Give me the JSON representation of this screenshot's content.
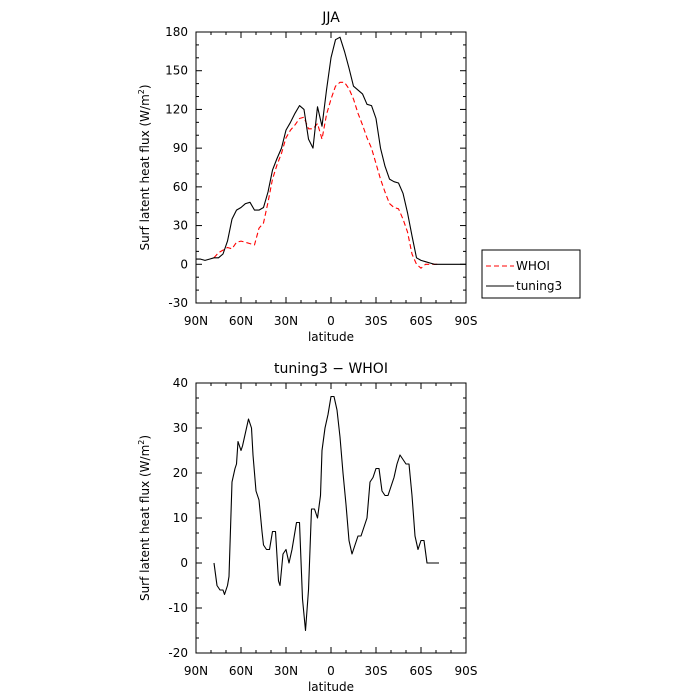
{
  "chart_data": [
    {
      "type": "line",
      "title": "JJA",
      "xlabel": "latitude",
      "ylabel": "Surf latent heat flux (W/m",
      "ylabel_sup": "2",
      "ylabel_end": ")",
      "xlim": [
        90,
        -90
      ],
      "ylim": [
        -30,
        180
      ],
      "x_ticks": [
        90,
        60,
        30,
        0,
        -30,
        -60,
        -90
      ],
      "x_tick_labels": [
        "90N",
        "60N",
        "30N",
        "0",
        "30S",
        "60S",
        "90S"
      ],
      "y_ticks": [
        -30,
        0,
        30,
        60,
        90,
        120,
        150,
        180
      ],
      "y_tick_labels": [
        "-30",
        "0",
        "30",
        "60",
        "90",
        "120",
        "150",
        "180"
      ],
      "legend_position": "right",
      "series": [
        {
          "name": "WHOI",
          "color": "#ff0000",
          "dash": "dashed",
          "x": [
            78,
            75,
            72,
            69,
            66,
            63,
            60,
            57,
            54,
            51,
            48,
            45,
            42,
            39,
            36,
            33,
            30,
            27,
            24,
            21,
            18,
            15,
            12,
            9,
            6,
            3,
            0,
            -3,
            -6,
            -9,
            -12,
            -15,
            -18,
            -21,
            -24,
            -27,
            -30,
            -33,
            -36,
            -39,
            -42,
            -45,
            -48,
            -51,
            -54,
            -57,
            -60,
            -63,
            -66,
            -69,
            -72
          ],
          "y": [
            5,
            9,
            11,
            13,
            12,
            17,
            18,
            17,
            16,
            15,
            28,
            32,
            48,
            66,
            77,
            86,
            98,
            104,
            108,
            113,
            114,
            105,
            105,
            109,
            97,
            116,
            128,
            138,
            141,
            141,
            136,
            128,
            117,
            108,
            98,
            90,
            78,
            66,
            56,
            47,
            44,
            43,
            35,
            25,
            8,
            0,
            -3,
            0,
            0,
            0,
            0
          ]
        },
        {
          "name": "tuning3",
          "color": "#000000",
          "dash": "solid",
          "x": [
            90,
            87,
            84,
            81,
            78,
            75,
            72,
            69,
            66,
            63,
            60,
            57,
            54,
            51,
            48,
            45,
            42,
            39,
            36,
            33,
            30,
            27,
            24,
            21,
            18,
            15,
            12,
            9,
            6,
            3,
            0,
            -3,
            -6,
            -9,
            -12,
            -15,
            -18,
            -21,
            -24,
            -27,
            -30,
            -33,
            -36,
            -39,
            -42,
            -45,
            -48,
            -51,
            -54,
            -57,
            -60,
            -63,
            -66,
            -69,
            -72,
            -75,
            -78,
            -81,
            -84,
            -87,
            -90
          ],
          "y": [
            4,
            4,
            3,
            4,
            5,
            5,
            8,
            18,
            35,
            42,
            44,
            47,
            48,
            42,
            42,
            44,
            56,
            73,
            82,
            90,
            104,
            110,
            117,
            123,
            120,
            97,
            90,
            122,
            107,
            135,
            160,
            174,
            176,
            165,
            152,
            138,
            135,
            132,
            124,
            123,
            113,
            90,
            76,
            66,
            64,
            63,
            55,
            40,
            22,
            5,
            3,
            2,
            1,
            0,
            0,
            0,
            0,
            0,
            0,
            0,
            0
          ]
        }
      ]
    },
    {
      "type": "line",
      "title": "tuning3 − WHOI",
      "xlabel": "latitude",
      "ylabel": "Surf latent heat flux (W/m",
      "ylabel_sup": "2",
      "ylabel_end": ")",
      "xlim": [
        90,
        -90
      ],
      "ylim": [
        -20,
        40
      ],
      "x_ticks": [
        90,
        60,
        30,
        0,
        -30,
        -60,
        -90
      ],
      "x_tick_labels": [
        "90N",
        "60N",
        "30N",
        "0",
        "30S",
        "60S",
        "90S"
      ],
      "y_ticks": [
        -20,
        -10,
        0,
        10,
        20,
        30,
        40
      ],
      "y_tick_labels": [
        "-20",
        "-10",
        "0",
        "10",
        "20",
        "30",
        "40"
      ],
      "series": [
        {
          "name": "tuning3 − WHOI",
          "color": "#000000",
          "dash": "solid",
          "x": [
            78,
            76,
            74,
            72,
            71,
            69,
            68,
            66,
            64,
            63,
            62,
            60,
            59,
            57,
            55,
            53,
            52,
            50,
            48,
            46,
            45,
            43,
            41,
            39,
            37,
            35,
            34,
            32,
            30,
            28,
            26,
            25,
            23,
            21,
            19,
            17,
            15,
            13,
            11,
            9,
            7,
            6,
            4,
            2,
            0,
            -2,
            -4,
            -6,
            -8,
            -10,
            -12,
            -14,
            -16,
            -18,
            -20,
            -22,
            -24,
            -26,
            -28,
            -30,
            -32,
            -34,
            -36,
            -38,
            -40,
            -42,
            -44,
            -46,
            -48,
            -50,
            -52,
            -54,
            -56,
            -58,
            -60,
            -62,
            -64,
            -66,
            -68,
            -70,
            -72
          ],
          "y": [
            0,
            -5,
            -6,
            -6,
            -7,
            -5,
            -3,
            18,
            21,
            22,
            27,
            25,
            26,
            29,
            32,
            30,
            24,
            16,
            14,
            7,
            4,
            3,
            3,
            7,
            7,
            -4,
            -5,
            2,
            3,
            0,
            3,
            5,
            9,
            9,
            -8,
            -15,
            -6,
            12,
            12,
            10,
            15,
            25,
            30,
            33,
            37,
            37,
            34,
            28,
            20,
            13,
            5,
            2,
            4,
            6,
            6,
            8,
            10,
            18,
            19,
            21,
            21,
            16,
            15,
            15,
            17,
            19,
            22,
            24,
            23,
            22,
            22,
            15,
            6,
            3,
            5,
            5,
            0,
            0,
            0,
            0,
            0
          ]
        }
      ]
    }
  ]
}
